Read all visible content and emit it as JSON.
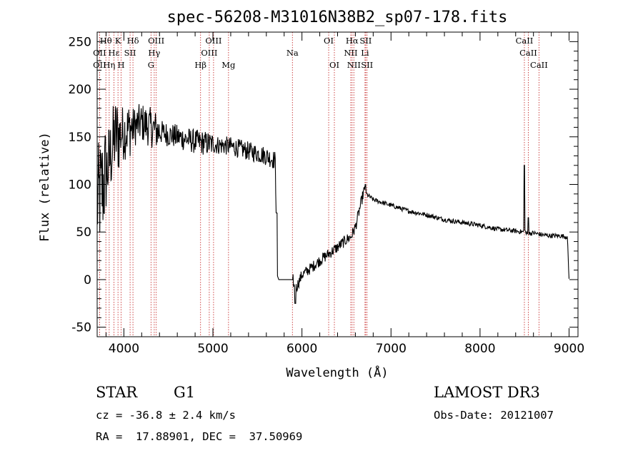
{
  "chart_data": {
    "type": "line",
    "title": "spec-56208-M31016N38B2_sp07-178.fits",
    "xlabel": "Wavelength (Å)",
    "ylabel": "Flux (relative)",
    "xlim": [
      3700,
      9100
    ],
    "ylim": [
      -60,
      260
    ],
    "xticks": [
      4000,
      5000,
      6000,
      7000,
      8000,
      9000
    ],
    "yticks": [
      -50,
      0,
      50,
      100,
      150,
      200,
      250
    ],
    "grid": false,
    "series": [
      {
        "name": "flux",
        "anchors": [
          [
            3700,
            80
          ],
          [
            3800,
            110
          ],
          [
            3900,
            150
          ],
          [
            4000,
            155
          ],
          [
            4100,
            160
          ],
          [
            4200,
            165
          ],
          [
            4300,
            160
          ],
          [
            4400,
            155
          ],
          [
            4600,
            150
          ],
          [
            4800,
            145
          ],
          [
            5000,
            142
          ],
          [
            5200,
            140
          ],
          [
            5400,
            135
          ],
          [
            5600,
            130
          ],
          [
            5700,
            125
          ],
          [
            5710,
            60
          ],
          [
            5720,
            5
          ],
          [
            5740,
            0
          ],
          [
            5850,
            0
          ],
          [
            5900,
            0
          ],
          [
            5920,
            -12
          ],
          [
            6000,
            5
          ],
          [
            6100,
            12
          ],
          [
            6200,
            20
          ],
          [
            6300,
            27
          ],
          [
            6400,
            34
          ],
          [
            6500,
            42
          ],
          [
            6550,
            45
          ],
          [
            6600,
            55
          ],
          [
            6650,
            75
          ],
          [
            6700,
            95
          ],
          [
            6720,
            90
          ],
          [
            6800,
            84
          ],
          [
            7000,
            78
          ],
          [
            7200,
            72
          ],
          [
            7400,
            68
          ],
          [
            7600,
            63
          ],
          [
            7800,
            60
          ],
          [
            8000,
            57
          ],
          [
            8200,
            53
          ],
          [
            8400,
            51
          ],
          [
            8480,
            50
          ],
          [
            8500,
            52
          ],
          [
            8520,
            48
          ],
          [
            8600,
            49
          ],
          [
            8700,
            47
          ],
          [
            8800,
            46
          ],
          [
            8900,
            46
          ],
          [
            8980,
            45
          ],
          [
            9000,
            0
          ]
        ],
        "features": [
          {
            "x": 8498,
            "y": 120
          },
          {
            "x": 5715,
            "y": 70
          },
          {
            "x": 6712,
            "y": 100
          },
          {
            "x": 5925,
            "y": -25
          },
          {
            "x": 8542,
            "y": 65
          }
        ]
      }
    ],
    "lines": [
      {
        "label": "Hθ",
        "wl": 3798,
        "row": 0
      },
      {
        "label": "OII",
        "wl": 3727,
        "row": 2
      },
      {
        "label": "K",
        "wl": 3934,
        "row": 0
      },
      {
        "label": "Hε",
        "wl": 3889,
        "row": 1
      },
      {
        "label": "SII",
        "wl": 4070,
        "row": 1
      },
      {
        "label": "Hδ",
        "wl": 4102,
        "row": 0
      },
      {
        "label": "Hη",
        "wl": 3835,
        "row": 2
      },
      {
        "label": "H",
        "wl": 3969,
        "row": 2
      },
      {
        "label": "OIII",
        "wl": 4363,
        "row": 0
      },
      {
        "label": "Hγ",
        "wl": 4341,
        "row": 1
      },
      {
        "label": "G",
        "wl": 4305,
        "row": 2
      },
      {
        "label": "OII",
        "wl": 3727,
        "row": 1
      },
      {
        "label": "OIII",
        "wl": 5007,
        "row": 0
      },
      {
        "label": "OIII",
        "wl": 4959,
        "row": 1
      },
      {
        "label": "Hβ",
        "wl": 4861,
        "row": 2
      },
      {
        "label": "Mg",
        "wl": 5175,
        "row": 2
      },
      {
        "label": "Na",
        "wl": 5893,
        "row": 1
      },
      {
        "label": "OI",
        "wl": 6300,
        "row": 0
      },
      {
        "label": "OI",
        "wl": 6364,
        "row": 2
      },
      {
        "label": "Hα",
        "wl": 6563,
        "row": 0
      },
      {
        "label": "SII",
        "wl": 6716,
        "row": 0
      },
      {
        "label": "NII",
        "wl": 6548,
        "row": 1
      },
      {
        "label": "Li",
        "wl": 6708,
        "row": 1
      },
      {
        "label": "NII",
        "wl": 6583,
        "row": 2
      },
      {
        "label": "SII",
        "wl": 6731,
        "row": 2
      },
      {
        "label": "CaII",
        "wl": 8498,
        "row": 0
      },
      {
        "label": "CaII",
        "wl": 8542,
        "row": 1
      },
      {
        "label": "CaII",
        "wl": 8662,
        "row": 2
      }
    ]
  },
  "info": {
    "object_class": "STAR",
    "subclass": "G1",
    "cz": "cz = -36.8 ± 2.4 km/s",
    "coords": "RA =  17.88901, DEC =  37.50969",
    "survey": "LAMOST DR3",
    "obs_date": "Obs-Date: 20121007"
  }
}
